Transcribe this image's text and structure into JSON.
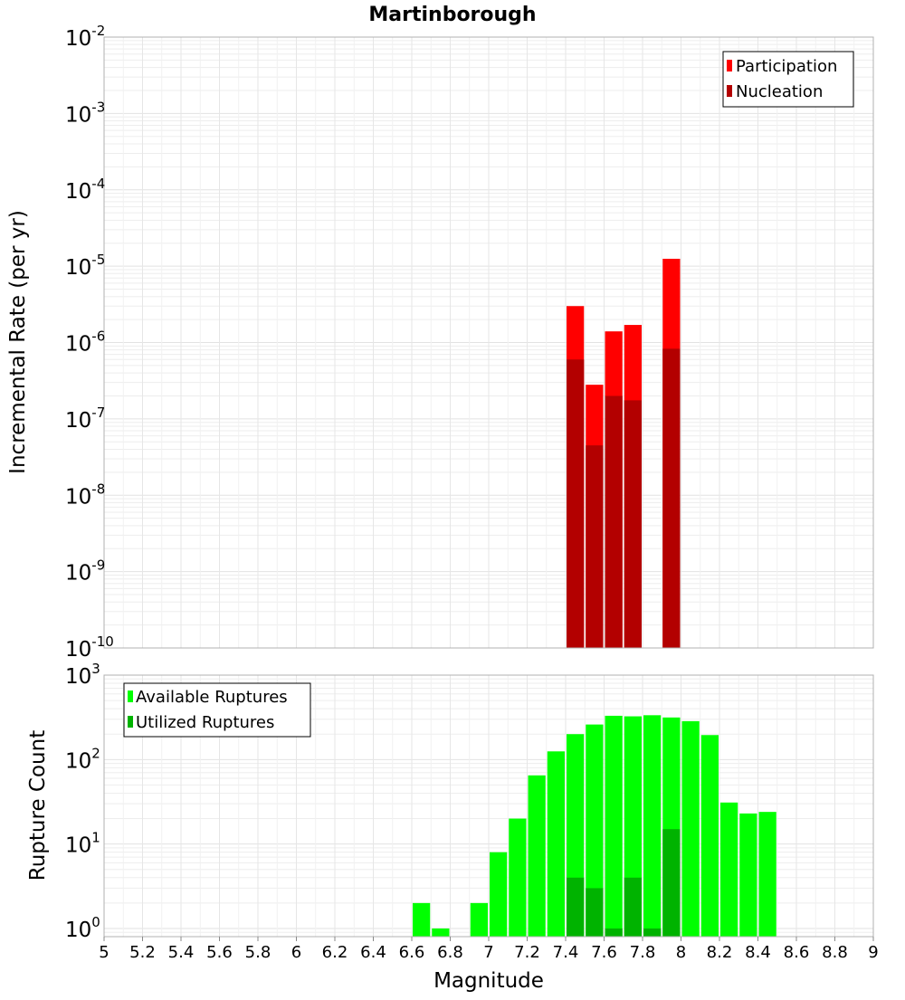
{
  "chart_data": [
    {
      "type": "bar",
      "title": "Martinborough",
      "xlabel": "",
      "ylabel": "Incremental Rate (per yr)",
      "yscale": "log",
      "ylim": [
        1e-10,
        0.01
      ],
      "ytick_base": "10",
      "yticks": [
        {
          "exp": "-10",
          "value": 1e-10
        },
        {
          "exp": "-9",
          "value": 1e-09
        },
        {
          "exp": "-8",
          "value": 1e-08
        },
        {
          "exp": "-7",
          "value": 1e-07
        },
        {
          "exp": "-6",
          "value": 1e-06
        },
        {
          "exp": "-5",
          "value": 1e-05
        },
        {
          "exp": "-4",
          "value": 0.0001
        },
        {
          "exp": "-3",
          "value": 0.001
        },
        {
          "exp": "-2",
          "value": 0.01
        }
      ],
      "legend_position": "top-right",
      "grid": true,
      "bin_width": 0.1,
      "series": [
        {
          "name": "Participation",
          "color": "#ff0000",
          "x": [
            7.45,
            7.55,
            7.65,
            7.75,
            7.95
          ],
          "values": [
            3e-06,
            2.8e-07,
            1.4e-06,
            1.7e-06,
            1.25e-05
          ]
        },
        {
          "name": "Nucleation",
          "color": "#b30000",
          "x": [
            7.45,
            7.55,
            7.65,
            7.75,
            7.95
          ],
          "values": [
            6e-07,
            4.5e-08,
            2e-07,
            1.75e-07,
            8.3e-07
          ]
        }
      ]
    },
    {
      "type": "bar",
      "title": "",
      "xlabel": "Magnitude",
      "ylabel": "Rupture Count",
      "yscale": "log",
      "ylim": [
        0.8,
        1000
      ],
      "ytick_base": "10",
      "yticks": [
        {
          "exp": "0",
          "value": 1
        },
        {
          "exp": "1",
          "value": 10
        },
        {
          "exp": "2",
          "value": 100
        },
        {
          "exp": "3",
          "value": 1000
        }
      ],
      "xlim": [
        5,
        9
      ],
      "xticks": [
        "5",
        "5.2",
        "5.4",
        "5.6",
        "5.8",
        "6",
        "6.2",
        "6.4",
        "6.6",
        "6.8",
        "7",
        "7.2",
        "7.4",
        "7.6",
        "7.8",
        "8",
        "8.2",
        "8.4",
        "8.6",
        "8.8",
        "9"
      ],
      "legend_position": "top-left",
      "grid": true,
      "bin_width": 0.1,
      "series": [
        {
          "name": "Available Ruptures",
          "color": "#00ff00",
          "x": [
            6.65,
            6.75,
            6.95,
            7.05,
            7.15,
            7.25,
            7.35,
            7.45,
            7.55,
            7.65,
            7.75,
            7.85,
            7.95,
            8.05,
            8.15,
            8.25,
            8.35,
            8.45
          ],
          "values": [
            2,
            1,
            2,
            8,
            20,
            65,
            125,
            200,
            260,
            330,
            325,
            335,
            315,
            285,
            195,
            31,
            23,
            24
          ]
        },
        {
          "name": "Utilized Ruptures",
          "color": "#00b300",
          "x": [
            7.45,
            7.55,
            7.65,
            7.75,
            7.85,
            7.95
          ],
          "values": [
            4,
            3,
            1,
            4,
            1,
            15
          ]
        }
      ]
    }
  ]
}
